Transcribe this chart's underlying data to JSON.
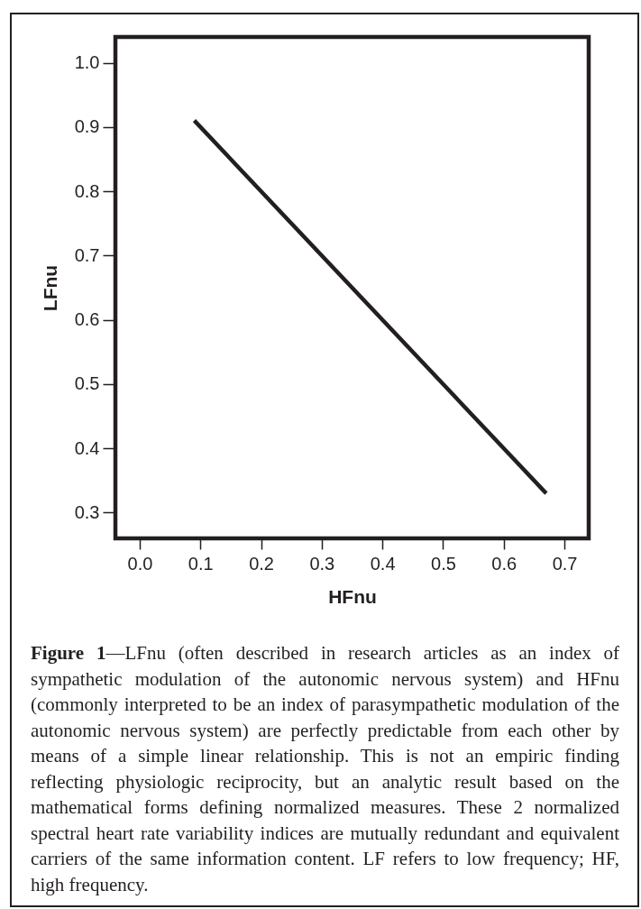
{
  "chart_data": {
    "type": "line",
    "xlabel": "HFnu",
    "ylabel": "LFnu",
    "series": [
      {
        "color": "#231f20",
        "x": [
          0.09,
          0.67
        ],
        "values": [
          0.91,
          0.33
        ]
      }
    ],
    "xlim": [
      -0.04,
      0.74
    ],
    "ylim": [
      0.26,
      1.04
    ],
    "xticks": [
      {
        "value": 0,
        "label": "0.0"
      },
      0.1,
      0.2,
      0.3,
      0.4,
      0.5,
      0.6,
      0.7
    ],
    "yticks": [
      0.3,
      0.4,
      0.5,
      0.6,
      0.7,
      0.8,
      0.9,
      {
        "value": 1,
        "label": "1.0"
      }
    ],
    "grid": false,
    "marker": "none",
    "line_style": "solid",
    "annotations": [
      "Figure 1—LFnu (often described in research articles as an index of sympathetic modulation of the autonomic nervous system) and HFnu (commonly interpreted to be an index of parasympathetic modulation of the autonomic nervous system) are perfectly predictable from each other by means of a simple linear relationship. This is not an empiric finding reflecting physiologic reciprocity, but an analytic result based on the mathematical forms defining normalized measures. These 2 normalized spectral heart rate variability indices are mutually redundant and equivalent carriers of the same information content. LF refers to low frequency; HF, high frequency."
    ]
  }
}
